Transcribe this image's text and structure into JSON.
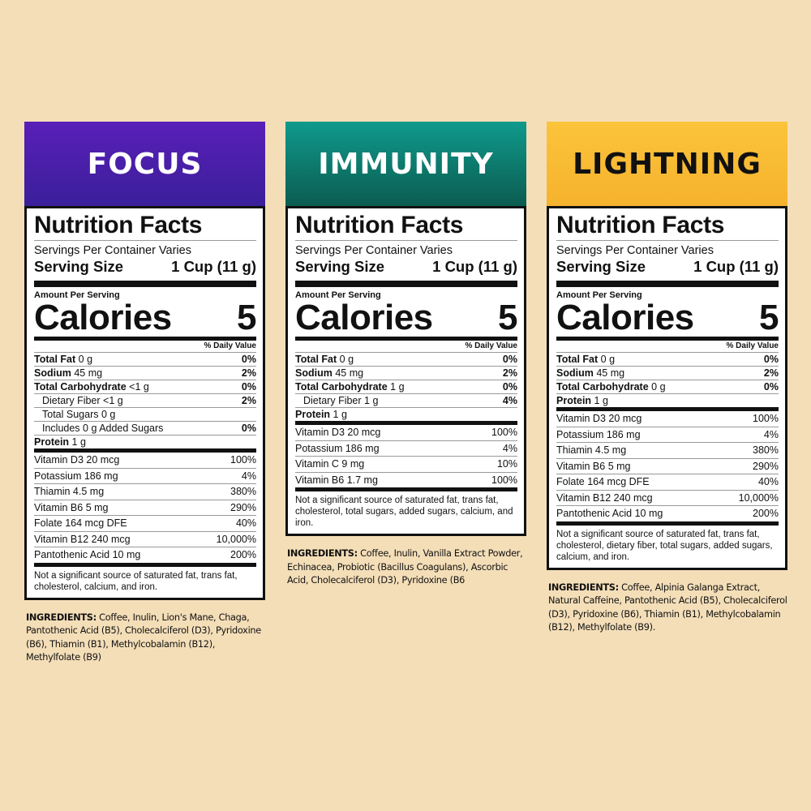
{
  "products": [
    {
      "name": "FOCUS",
      "header_color_top": "#5a1fb8",
      "header_color_bottom": "#3a1f9a",
      "header_text_color": "#ffffff",
      "title": "Nutrition Facts",
      "servings_per_container": "Servings Per Container Varies",
      "serving_size_label": "Serving Size",
      "serving_size_value": "1 Cup (11 g)",
      "amount_per_serving": "Amount Per Serving",
      "calories_label": "Calories",
      "calories_value": "5",
      "daily_value_header": "% Daily Value",
      "nutrients": [
        {
          "bold": "Total Fat",
          "amount": "0 g",
          "dv": "0%",
          "indent": false
        },
        {
          "bold": "Sodium",
          "amount": "45 mg",
          "dv": "2%",
          "indent": false
        },
        {
          "bold": "Total Carbohydrate",
          "amount": "<1 g",
          "dv": "0%",
          "indent": false
        },
        {
          "bold": "",
          "amount": "Dietary Fiber <1 g",
          "dv": "2%",
          "indent": true
        },
        {
          "bold": "",
          "amount": "Total Sugars 0 g",
          "dv": "",
          "indent": true
        },
        {
          "bold": "",
          "amount": "Includes 0 g Added Sugars",
          "dv": "0%",
          "indent": true
        },
        {
          "bold": "Protein",
          "amount": "1 g",
          "dv": "",
          "indent": false
        }
      ],
      "vitamins": [
        {
          "name": "Vitamin D3 20 mcg",
          "dv": "100%"
        },
        {
          "name": "Potassium 186 mg",
          "dv": "4%"
        },
        {
          "name": "Thiamin 4.5 mg",
          "dv": "380%"
        },
        {
          "name": "Vitamin B6 5 mg",
          "dv": "290%"
        },
        {
          "name": "Folate 164 mcg DFE",
          "dv": "40%"
        },
        {
          "name": "Vitamin B12 240 mcg",
          "dv": "10,000%"
        },
        {
          "name": "Pantothenic Acid 10 mg",
          "dv": "200%"
        }
      ],
      "footnote": "Not a significant source of saturated fat, trans fat, cholesterol, calcium, and iron.",
      "ingredients_label": "INGREDIENTS:",
      "ingredients": "Coffee, Inulin, Lion's Mane, Chaga, Pantothenic Acid (B5), Cholecalciferol (D3), Pyridoxine (B6), Thiamin (B1), Methylcobalamin (B12), Methylfolate (B9)"
    },
    {
      "name": "IMMUNITY",
      "header_color_top": "#0f9a8c",
      "header_color_bottom": "#0b5c50",
      "header_text_color": "#ffffff",
      "title": "Nutrition Facts",
      "servings_per_container": "Servings Per Container Varies",
      "serving_size_label": "Serving Size",
      "serving_size_value": "1 Cup (11 g)",
      "amount_per_serving": "Amount Per Serving",
      "calories_label": "Calories",
      "calories_value": "5",
      "daily_value_header": "% Daily Value",
      "nutrients": [
        {
          "bold": "Total Fat",
          "amount": "0 g",
          "dv": "0%",
          "indent": false
        },
        {
          "bold": "Sodium",
          "amount": "45 mg",
          "dv": "2%",
          "indent": false
        },
        {
          "bold": "Total Carbohydrate",
          "amount": "1 g",
          "dv": "0%",
          "indent": false
        },
        {
          "bold": "",
          "amount": "Dietary Fiber 1 g",
          "dv": "4%",
          "indent": true
        },
        {
          "bold": "Protein",
          "amount": "1 g",
          "dv": "",
          "indent": false
        }
      ],
      "vitamins": [
        {
          "name": "Vitamin D3 20 mcg",
          "dv": "100%"
        },
        {
          "name": "Potassium 186 mg",
          "dv": "4%"
        },
        {
          "name": "Vitamin C 9 mg",
          "dv": "10%"
        },
        {
          "name": "Vitamin B6 1.7 mg",
          "dv": "100%"
        }
      ],
      "footnote": "Not a significant source of saturated fat, trans fat, cholesterol, total sugars, added sugars, calcium, and iron.",
      "ingredients_label": "INGREDIENTS:",
      "ingredients": "Coffee, Inulin, Vanilla Extract Powder, Echinacea, Probiotic (Bacillus Coagulans), Ascorbic Acid, Cholecalciferol (D3), Pyridoxine (B6"
    },
    {
      "name": "LIGHTNING",
      "header_color_top": "#fbc43a",
      "header_color_bottom": "#f6b22e",
      "header_text_color": "#111111",
      "title": "Nutrition Facts",
      "servings_per_container": "Servings Per Container Varies",
      "serving_size_label": "Serving Size",
      "serving_size_value": "1 Cup (11 g)",
      "amount_per_serving": "Amount Per Serving",
      "calories_label": "Calories",
      "calories_value": "5",
      "daily_value_header": "% Daily Value",
      "nutrients": [
        {
          "bold": "Total Fat",
          "amount": "0 g",
          "dv": "0%",
          "indent": false
        },
        {
          "bold": "Sodium",
          "amount": "45 mg",
          "dv": "2%",
          "indent": false
        },
        {
          "bold": "Total Carbohydrate",
          "amount": "0 g",
          "dv": "0%",
          "indent": false
        },
        {
          "bold": "Protein",
          "amount": "1 g",
          "dv": "",
          "indent": false
        }
      ],
      "vitamins": [
        {
          "name": "Vitamin D3 20 mcg",
          "dv": "100%"
        },
        {
          "name": "Potassium 186 mg",
          "dv": "4%"
        },
        {
          "name": "Thiamin 4.5 mg",
          "dv": "380%"
        },
        {
          "name": "Vitamin B6 5 mg",
          "dv": "290%"
        },
        {
          "name": "Folate 164 mcg DFE",
          "dv": "40%"
        },
        {
          "name": "Vitamin B12 240 mcg",
          "dv": "10,000%"
        },
        {
          "name": "Pantothenic Acid 10 mg",
          "dv": "200%"
        }
      ],
      "footnote": "Not a significant source of saturated fat, trans fat, cholesterol, dietary fiber, total sugars, added sugars, calcium, and iron.",
      "ingredients_label": "INGREDIENTS:",
      "ingredients": "Coffee, Alpinia Galanga Extract, Natural Caffeine, Pantothenic Acid (B5), Cholecalciferol (D3), Pyridoxine (B6), Thiamin (B1), Methylcobalamin (B12), Methylfolate (B9)."
    }
  ]
}
